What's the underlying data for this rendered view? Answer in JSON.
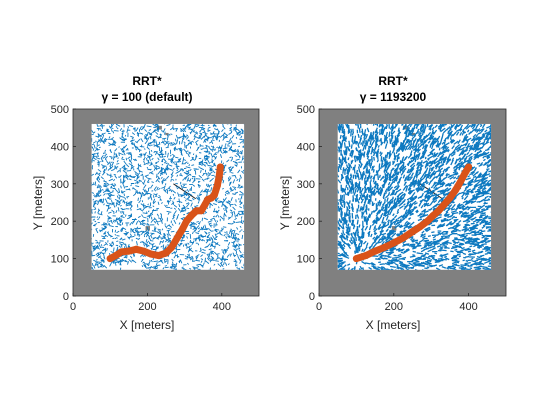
{
  "figure": {
    "background": "#ffffff"
  },
  "chart_data": [
    {
      "type": "line",
      "title": "RRT*",
      "subtitle": "γ  =  100  (default)",
      "xlabel": "X [meters]",
      "ylabel": "Y [meters]",
      "xlim": [
        0,
        500
      ],
      "ylim": [
        0,
        500
      ],
      "xticks": [
        0,
        200,
        400
      ],
      "yticks": [
        0,
        100,
        200,
        300,
        400,
        500
      ],
      "grid": false,
      "free_space": {
        "x": [
          50,
          460
        ],
        "y": [
          70,
          460
        ]
      },
      "colors": {
        "obstacle": "#808080",
        "free": "#ffffff",
        "tree": "#0072bd",
        "path": "#d95319"
      },
      "series": [
        {
          "x": [
            100,
            115,
            130,
            150,
            170,
            190,
            210,
            230,
            250,
            265,
            280,
            295,
            305,
            318,
            332,
            345,
            355,
            362,
            372,
            380,
            388,
            393,
            396
          ],
          "y": [
            100,
            108,
            118,
            120,
            125,
            120,
            112,
            108,
            115,
            130,
            155,
            180,
            200,
            215,
            228,
            228,
            245,
            258,
            262,
            270,
            295,
            320,
            345
          ]
        }
      ]
    },
    {
      "type": "line",
      "title": "RRT*",
      "subtitle": "γ  =  1193200",
      "xlabel": "X [meters]",
      "ylabel": "Y [meters]",
      "xlim": [
        0,
        500
      ],
      "ylim": [
        0,
        500
      ],
      "xticks": [
        0,
        200,
        400
      ],
      "yticks": [
        0,
        100,
        200,
        300,
        400,
        500
      ],
      "grid": false,
      "free_space": {
        "x": [
          50,
          460
        ],
        "y": [
          70,
          460
        ]
      },
      "colors": {
        "obstacle": "#808080",
        "free": "#ffffff",
        "tree": "#0072bd",
        "path": "#d95319"
      },
      "series": [
        {
          "x": [
            100,
            125,
            150,
            175,
            200,
            225,
            250,
            270,
            290,
            305,
            320,
            335,
            350,
            365,
            378,
            390,
            400
          ],
          "y": [
            100,
            108,
            120,
            130,
            142,
            155,
            172,
            185,
            200,
            215,
            228,
            245,
            262,
            283,
            305,
            328,
            345
          ]
        }
      ]
    }
  ]
}
